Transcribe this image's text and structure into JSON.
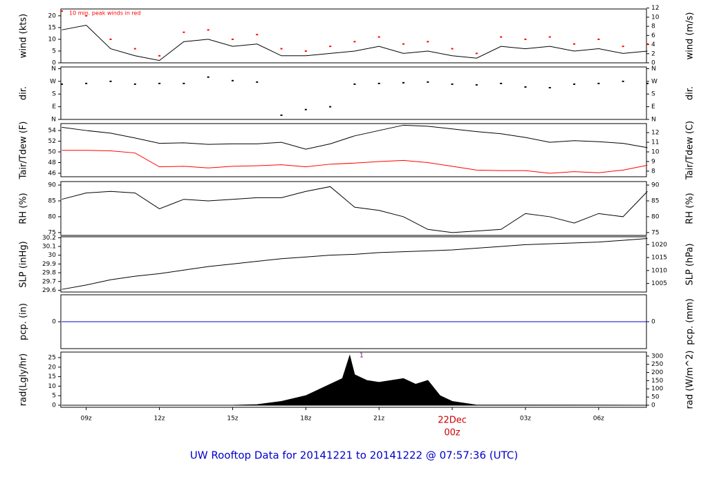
{
  "chart_data": [
    {
      "type": "line",
      "ylabel": "wind (kts)",
      "y2label": "wind (m/s)",
      "x": [
        8,
        9,
        10,
        11,
        12,
        13,
        14,
        15,
        16,
        17,
        18,
        19,
        20,
        21,
        22,
        23,
        24,
        25,
        26,
        27,
        28,
        29,
        30,
        31,
        32
      ],
      "xlim": [
        7.96,
        31.96
      ],
      "series": [
        {
          "color": "#000000",
          "style": "line",
          "values": [
            14,
            16,
            6,
            3,
            1,
            9,
            10,
            7,
            8,
            3,
            3,
            4,
            5,
            7,
            4,
            5,
            3,
            2,
            7,
            6,
            7,
            5,
            6,
            4,
            5
          ]
        },
        {
          "name": "10 min. peak winds in red",
          "color": "#ff0000",
          "style": "points",
          "values": [
            22,
            20,
            10,
            6,
            3,
            13,
            14,
            10,
            12,
            6,
            5,
            7,
            9,
            11,
            8,
            9,
            6,
            4,
            11,
            10,
            11,
            8,
            10,
            7,
            8
          ]
        }
      ],
      "ylim": [
        0,
        22.9
      ],
      "yticks": [
        0,
        5,
        10,
        15,
        20
      ],
      "y2lim": [
        0,
        11.8
      ],
      "y2ticks": [
        0,
        2,
        4,
        6,
        8,
        10,
        12
      ]
    },
    {
      "type": "scatter",
      "ylabel": "dir.",
      "y2label": "dir.",
      "x": [
        8,
        9,
        10,
        11,
        12,
        13,
        14,
        15,
        16,
        17,
        18,
        19,
        20,
        21,
        22,
        23,
        24,
        25,
        26,
        27,
        28,
        29,
        30,
        31,
        32
      ],
      "xlim": [
        7.96,
        31.96
      ],
      "series": [
        {
          "color": "#000000",
          "values": [
            250,
            255,
            270,
            250,
            255,
            255,
            300,
            275,
            265,
            30,
            70,
            90,
            250,
            255,
            260,
            265,
            250,
            245,
            255,
            230,
            225,
            250,
            255,
            270,
            255
          ]
        }
      ],
      "ylim": [
        0,
        372
      ],
      "yticks": [
        {
          "value": 0,
          "label": "N"
        },
        {
          "value": 90,
          "label": "E"
        },
        {
          "value": 180,
          "label": "S"
        },
        {
          "value": 270,
          "label": "W"
        },
        {
          "value": 360,
          "label": "N"
        }
      ],
      "y2lim": [
        0,
        372
      ],
      "y2ticks": [
        {
          "value": 0,
          "label": "N"
        },
        {
          "value": 90,
          "label": "E"
        },
        {
          "value": 180,
          "label": "S"
        },
        {
          "value": 270,
          "label": "W"
        },
        {
          "value": 360,
          "label": "N"
        }
      ]
    },
    {
      "type": "line",
      "ylabel": "Tair/Tdew (F)",
      "y2label": "Tair/Tdew (C)",
      "x": [
        8,
        9,
        10,
        11,
        12,
        13,
        14,
        15,
        16,
        17,
        18,
        19,
        20,
        21,
        22,
        23,
        24,
        25,
        26,
        27,
        28,
        29,
        30,
        31,
        32
      ],
      "xlim": [
        7.96,
        31.96
      ],
      "series": [
        {
          "color": "#000000",
          "style": "line",
          "values": [
            54.6,
            54,
            53.5,
            52.6,
            51.6,
            51.7,
            51.4,
            51.5,
            51.5,
            51.8,
            50.5,
            51.5,
            53,
            54,
            55,
            54.8,
            54.3,
            53.8,
            53.4,
            52.7,
            51.8,
            52.1,
            51.9,
            51.6,
            50.8
          ]
        },
        {
          "color": "#ff0000",
          "style": "line",
          "values": [
            50.3,
            50.3,
            50.2,
            49.8,
            47.2,
            47.3,
            47,
            47.3,
            47.4,
            47.6,
            47.2,
            47.7,
            47.9,
            48.2,
            48.4,
            48,
            47.3,
            46.6,
            46.5,
            46.5,
            46,
            46.3,
            46.1,
            46.6,
            47.5
          ]
        }
      ],
      "ylim": [
        45.35,
        55.3
      ],
      "yticks": [
        46,
        48,
        50,
        52,
        54
      ],
      "y2lim": [
        7.42,
        12.94
      ],
      "y2ticks": [
        8,
        9,
        10,
        11,
        12
      ]
    },
    {
      "type": "line",
      "ylabel": "RH (%)",
      "y2label": "RH (%)",
      "x": [
        8,
        9,
        10,
        11,
        12,
        13,
        14,
        15,
        16,
        17,
        18,
        19,
        20,
        21,
        22,
        23,
        24,
        25,
        26,
        27,
        28,
        29,
        30,
        31,
        32
      ],
      "xlim": [
        7.96,
        31.96
      ],
      "series": [
        {
          "color": "#000000",
          "style": "line",
          "values": [
            85.5,
            87.5,
            88,
            87.5,
            82.5,
            85.5,
            85,
            85.5,
            86,
            86,
            88,
            89.5,
            83,
            82,
            80,
            76,
            75,
            75.5,
            76,
            81,
            80,
            78,
            81,
            80,
            88
          ]
        }
      ],
      "ylim": [
        74.1,
        91.1
      ],
      "yticks": [
        75,
        80,
        85,
        90
      ],
      "y2lim": [
        74.1,
        91.1
      ],
      "y2ticks": [
        75,
        80,
        85,
        90
      ]
    },
    {
      "type": "line",
      "ylabel": "SLP (inHg)",
      "y2label": "SLP (hPa)",
      "x": [
        8,
        9,
        10,
        11,
        12,
        13,
        14,
        15,
        16,
        17,
        18,
        19,
        20,
        21,
        22,
        23,
        24,
        25,
        26,
        27,
        28,
        29,
        30,
        31,
        32
      ],
      "xlim": [
        7.96,
        31.96
      ],
      "series": [
        {
          "color": "#000000",
          "style": "line",
          "values": [
            29.61,
            29.66,
            29.72,
            29.76,
            29.79,
            29.83,
            29.87,
            29.9,
            29.93,
            29.96,
            29.98,
            30.0,
            30.01,
            30.03,
            30.04,
            30.05,
            30.06,
            30.08,
            30.1,
            30.12,
            30.13,
            30.14,
            30.15,
            30.17,
            30.19
          ]
        }
      ],
      "ylim": [
        29.58,
        30.21
      ],
      "yticks": [
        29.6,
        29.7,
        29.8,
        29.9,
        30.0,
        30.1,
        30.2
      ],
      "y2lim": [
        1001.7,
        1023.0
      ],
      "y2ticks": [
        1005,
        1010,
        1015,
        1020
      ]
    },
    {
      "type": "line",
      "ylabel": "pcp. (in)",
      "y2label": "pcp. (mm)",
      "x": [
        8,
        32
      ],
      "xlim": [
        7.96,
        31.96
      ],
      "series": [
        {
          "color": "#0000cc",
          "style": "line",
          "values": [
            0,
            0
          ]
        }
      ],
      "ylim": [
        -1,
        1
      ],
      "yticks": [
        0
      ],
      "y2lim": [
        -1,
        1
      ],
      "y2ticks": [
        0
      ]
    },
    {
      "type": "area",
      "ylabel": "rad(Lgly/hr)",
      "y2label": "rad (W/m^2)",
      "x": [
        8,
        15,
        16,
        17,
        18,
        19,
        19.5,
        19.8,
        20,
        20.5,
        21,
        22,
        22.5,
        23,
        23.5,
        24,
        25,
        32
      ],
      "xlim": [
        7.96,
        31.96
      ],
      "series": [
        {
          "color": "#000000",
          "values": [
            0,
            0,
            0.3,
            2,
            5,
            11,
            14,
            26,
            16,
            13,
            12,
            14,
            11,
            13,
            5,
            2,
            0.1,
            0
          ]
        }
      ],
      "annotation": "1",
      "ylim": [
        -1.1,
        27.9
      ],
      "yticks": [
        0,
        5,
        10,
        15,
        20,
        25
      ],
      "y2lim": [
        -12.8,
        324.5
      ],
      "y2ticks": [
        0,
        50,
        100,
        150,
        200,
        250,
        300
      ],
      "xticks": [
        {
          "value": 9,
          "label": "09z"
        },
        {
          "value": 12,
          "label": "12z"
        },
        {
          "value": 15,
          "label": "15z"
        },
        {
          "value": 18,
          "label": "18z"
        },
        {
          "value": 21,
          "label": "21z"
        },
        {
          "value": 24,
          "label": "00z"
        },
        {
          "value": 27,
          "label": "03z"
        },
        {
          "value": 30,
          "label": "06z"
        }
      ],
      "x_date_label": "22Dec",
      "x_date_tick": 24
    }
  ],
  "title": "UW Rooftop Data for 20141221  to  20141222 @ 07:57:36  (UTC)"
}
